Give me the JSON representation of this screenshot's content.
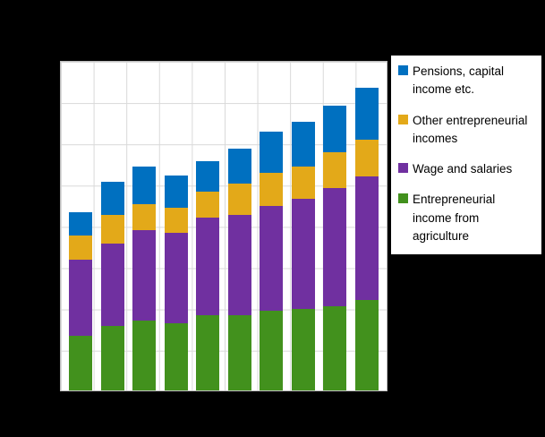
{
  "page": {
    "background_color": "#000000",
    "plot_background_color": "#ffffff",
    "gridline_color": "#d9d9d9"
  },
  "chart_data": {
    "type": "bar",
    "stacked": true,
    "title": "",
    "xlabel": "",
    "ylabel": "",
    "x_tick_labels_visible": false,
    "y_tick_labels_visible": false,
    "bar_count": 10,
    "categories": [
      "",
      "",
      "",
      "",
      "",
      "",
      "",
      "",
      "",
      ""
    ],
    "ylim": [
      0,
      80
    ],
    "grid": true,
    "series": [
      {
        "name": "Entrepreneurial income from agriculture",
        "color": "#42911d",
        "values": [
          13.4,
          15.6,
          17.1,
          16.3,
          18.4,
          18.4,
          19.3,
          19.9,
          20.6,
          22.1
        ]
      },
      {
        "name": "Wage and salaries",
        "color": "#7030a0",
        "values": [
          18.4,
          20.2,
          21.9,
          22.1,
          23.6,
          24.3,
          25.6,
          26.7,
          28.6,
          29.9
        ]
      },
      {
        "name": "Other entrepreneurial incomes",
        "color": "#e3a919",
        "values": [
          5.9,
          6.9,
          6.3,
          6.1,
          6.5,
          7.6,
          8.0,
          8.0,
          8.7,
          9.1
        ]
      },
      {
        "name": "Pensions, capital income etc.",
        "color": "#0070c0",
        "values": [
          5.6,
          8.0,
          9.1,
          7.8,
          7.4,
          8.5,
          10.2,
          10.8,
          11.5,
          12.6
        ]
      }
    ],
    "legend": {
      "position": "right",
      "entries": [
        {
          "label": "Pensions, capital income etc.",
          "color": "#0070c0"
        },
        {
          "label": "Other entrepreneurial incomes",
          "color": "#e3a919"
        },
        {
          "label": "Wage and salaries",
          "color": "#7030a0"
        },
        {
          "label": "Entrepreneurial income from agriculture",
          "color": "#42911d"
        }
      ]
    }
  }
}
